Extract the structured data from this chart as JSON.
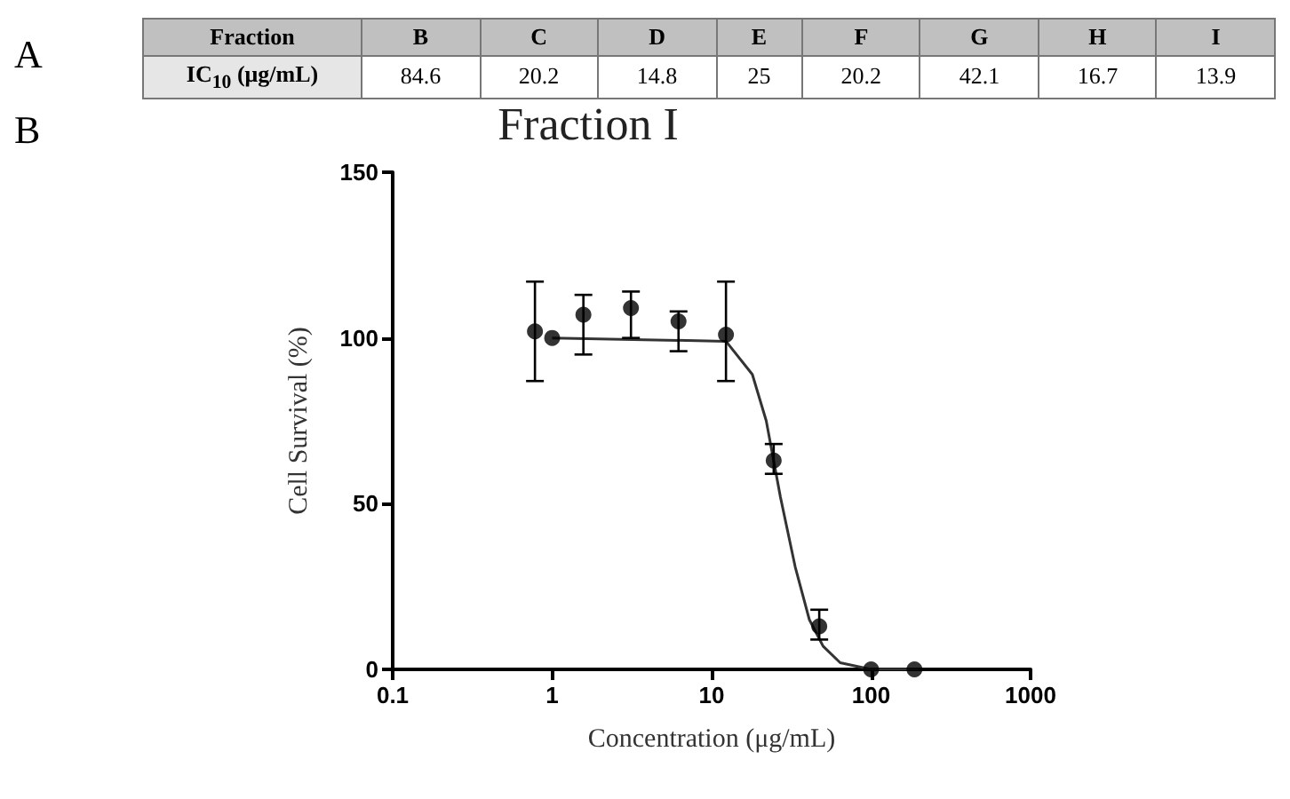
{
  "chart_data": [
    {
      "type": "other",
      "xlabel": "Fraction",
      "ylabel": "IC$_{10}$ (μg/mL)",
      "categories": [
        "B",
        "C",
        "D",
        "E",
        "F",
        "G",
        "H",
        "I"
      ],
      "values": [
        84.6,
        20.2,
        14.8,
        25,
        20.2,
        42.1,
        16.7,
        13.9
      ],
      "data_labels": true,
      "annotations": [
        "A"
      ]
    },
    {
      "type": "scatter",
      "title": "Fraction I",
      "xlabel": "Concentration (μg/mL)",
      "ylabel": "Cell Survival (%)",
      "log": "x",
      "xlim": [
        0.1,
        1000
      ],
      "xticks": [
        0.1,
        1,
        10,
        100,
        1000
      ],
      "ylim": [
        0,
        150
      ],
      "yticks": [
        0,
        50,
        100,
        150
      ],
      "grid": false,
      "marker": "circle",
      "annotations": [
        "B"
      ],
      "series": [
        {
          "type": "scatter",
          "color": "#000000",
          "x": [
            0.78,
            1,
            1.57,
            3.12,
            6.2,
            12.3,
            24.5,
            47.3,
            100,
            187
          ],
          "values": [
            102,
            100,
            107,
            109,
            105,
            101,
            63,
            13,
            0,
            0
          ],
          "errors": [
            [
              87,
              117
            ],
            null,
            [
              95,
              113
            ],
            [
              100,
              114
            ],
            [
              96,
              108
            ],
            [
              87,
              117
            ],
            [
              59,
              68
            ],
            [
              9,
              18
            ],
            null,
            null
          ]
        },
        {
          "type": "line",
          "color": "#333333",
          "marker": "none",
          "x": [
            1,
            12.3,
            18,
            22,
            27,
            33.4,
            41,
            50,
            64,
            100,
            200
          ],
          "values": [
            100,
            99,
            89,
            75,
            52,
            31,
            15,
            7,
            2,
            0,
            0
          ]
        }
      ]
    }
  ]
}
